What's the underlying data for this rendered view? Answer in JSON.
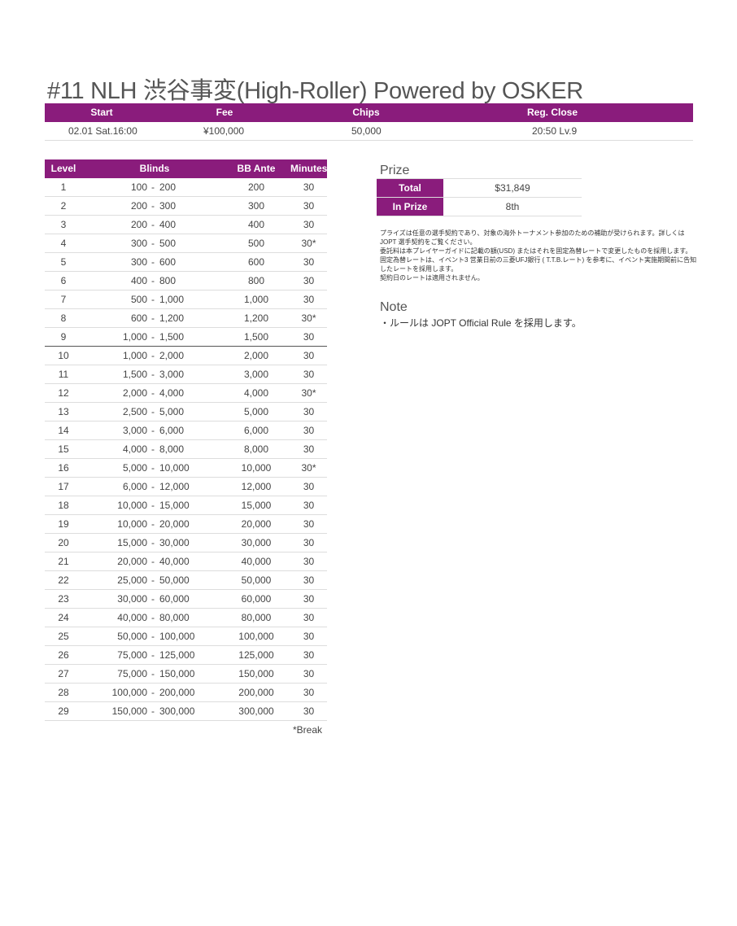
{
  "title": "#11 NLH 渋谷事変(High-Roller) Powered by OSKER",
  "info": {
    "headers": [
      "Start",
      "Fee",
      "Chips",
      "Reg. Close"
    ],
    "values": [
      "02.01 Sat.16:00",
      "¥100,000",
      "50,000",
      "20:50 Lv.9"
    ]
  },
  "levels": {
    "headers": {
      "level": "Level",
      "blinds": "Blinds",
      "ante": "BB Ante",
      "minutes": "Minutes"
    },
    "rows": [
      {
        "level": "1",
        "sb": "100",
        "bb": "200",
        "ante": "200",
        "minutes": "30"
      },
      {
        "level": "2",
        "sb": "200",
        "bb": "300",
        "ante": "300",
        "minutes": "30"
      },
      {
        "level": "3",
        "sb": "200",
        "bb": "400",
        "ante": "400",
        "minutes": "30"
      },
      {
        "level": "4",
        "sb": "300",
        "bb": "500",
        "ante": "500",
        "minutes": "30*"
      },
      {
        "level": "5",
        "sb": "300",
        "bb": "600",
        "ante": "600",
        "minutes": "30"
      },
      {
        "level": "6",
        "sb": "400",
        "bb": "800",
        "ante": "800",
        "minutes": "30"
      },
      {
        "level": "7",
        "sb": "500",
        "bb": "1,000",
        "ante": "1,000",
        "minutes": "30"
      },
      {
        "level": "8",
        "sb": "600",
        "bb": "1,200",
        "ante": "1,200",
        "minutes": "30*"
      },
      {
        "level": "9",
        "sb": "1,000",
        "bb": "1,500",
        "ante": "1,500",
        "minutes": "30"
      },
      {
        "level": "10",
        "sb": "1,000",
        "bb": "2,000",
        "ante": "2,000",
        "minutes": "30"
      },
      {
        "level": "11",
        "sb": "1,500",
        "bb": "3,000",
        "ante": "3,000",
        "minutes": "30"
      },
      {
        "level": "12",
        "sb": "2,000",
        "bb": "4,000",
        "ante": "4,000",
        "minutes": "30*"
      },
      {
        "level": "13",
        "sb": "2,500",
        "bb": "5,000",
        "ante": "5,000",
        "minutes": "30"
      },
      {
        "level": "14",
        "sb": "3,000",
        "bb": "6,000",
        "ante": "6,000",
        "minutes": "30"
      },
      {
        "level": "15",
        "sb": "4,000",
        "bb": "8,000",
        "ante": "8,000",
        "minutes": "30"
      },
      {
        "level": "16",
        "sb": "5,000",
        "bb": "10,000",
        "ante": "10,000",
        "minutes": "30*"
      },
      {
        "level": "17",
        "sb": "6,000",
        "bb": "12,000",
        "ante": "12,000",
        "minutes": "30"
      },
      {
        "level": "18",
        "sb": "10,000",
        "bb": "15,000",
        "ante": "15,000",
        "minutes": "30"
      },
      {
        "level": "19",
        "sb": "10,000",
        "bb": "20,000",
        "ante": "20,000",
        "minutes": "30"
      },
      {
        "level": "20",
        "sb": "15,000",
        "bb": "30,000",
        "ante": "30,000",
        "minutes": "30"
      },
      {
        "level": "21",
        "sb": "20,000",
        "bb": "40,000",
        "ante": "40,000",
        "minutes": "30"
      },
      {
        "level": "22",
        "sb": "25,000",
        "bb": "50,000",
        "ante": "50,000",
        "minutes": "30"
      },
      {
        "level": "23",
        "sb": "30,000",
        "bb": "60,000",
        "ante": "60,000",
        "minutes": "30"
      },
      {
        "level": "24",
        "sb": "40,000",
        "bb": "80,000",
        "ante": "80,000",
        "minutes": "30"
      },
      {
        "level": "25",
        "sb": "50,000",
        "bb": "100,000",
        "ante": "100,000",
        "minutes": "30"
      },
      {
        "level": "26",
        "sb": "75,000",
        "bb": "125,000",
        "ante": "125,000",
        "minutes": "30"
      },
      {
        "level": "27",
        "sb": "75,000",
        "bb": "150,000",
        "ante": "150,000",
        "minutes": "30"
      },
      {
        "level": "28",
        "sb": "100,000",
        "bb": "200,000",
        "ante": "200,000",
        "minutes": "30"
      },
      {
        "level": "29",
        "sb": "150,000",
        "bb": "300,000",
        "ante": "300,000",
        "minutes": "30"
      }
    ],
    "break_note": "*Break"
  },
  "prize": {
    "title": "Prize",
    "rows": [
      {
        "label": "Total",
        "value": "$31,849"
      },
      {
        "label": "In Prize",
        "value": "8th"
      }
    ],
    "notes": [
      "プライズは任意の選手契約であり、対象の海外トーナメント参加のための補助が受けられます。詳しくは JOPT 選手契約をご覧ください。",
      "委託料は本プレイヤーガイドに記載の額(USD) またはそれを固定為替レートで変更したものを採用します。",
      "固定為替レートは、イベント3 営業日前の三菱UFJ銀行 ( T.T.B.レート) を参考に、イベント実施期間前に告知したレートを採用します。",
      "契約日のレートは適用されません。"
    ]
  },
  "note": {
    "title": "Note",
    "body": "・ルールは JOPT Official Rule を採用します。"
  },
  "colors": {
    "accent": "#8a1c7c"
  }
}
